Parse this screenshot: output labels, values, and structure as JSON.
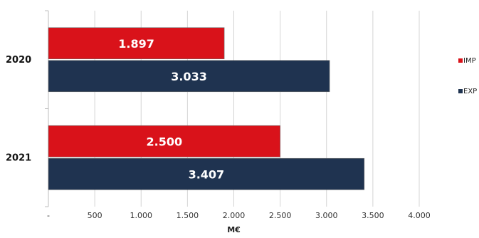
{
  "chart_data": {
    "type": "bar",
    "orientation": "horizontal",
    "categories": [
      "2020",
      "2021"
    ],
    "series": [
      {
        "name": "IMP",
        "color": "#d9121a",
        "values": [
          1897,
          2500
        ],
        "labels": [
          "1.897",
          "2.500"
        ]
      },
      {
        "name": "EXP",
        "color": "#1f3350",
        "values": [
          3033,
          3407
        ],
        "labels": [
          "3.033",
          "3.407"
        ]
      }
    ],
    "xlim": [
      0,
      4000
    ],
    "xticks": [
      0,
      500,
      1000,
      1500,
      2000,
      2500,
      3000,
      3500,
      4000
    ],
    "xtick_labels": [
      "-",
      "500",
      "1.000",
      "1.500",
      "2.000",
      "2.500",
      "3.000",
      "3.500",
      "4.000"
    ],
    "xlabel": "M€",
    "ylabel": "",
    "title": "",
    "grid": true,
    "legend_position": "right"
  }
}
